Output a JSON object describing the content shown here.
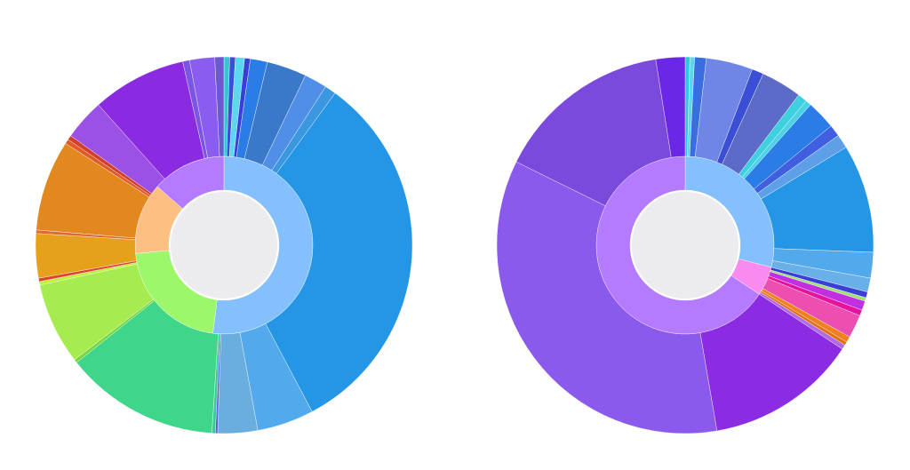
{
  "chart_data": [
    {
      "type": "sunburst",
      "rings": [
        {
          "values": [
            52,
            21.5,
            13,
            13.5
          ],
          "colors": [
            "#84c0fd",
            "#9cf76a",
            "#fdbf82",
            "#b57bff"
          ]
        },
        {
          "values": [
            0.5,
            0.5,
            0.8,
            0.5,
            1.5,
            3.5,
            2,
            1,
            33,
            5,
            3.5,
            0.2,
            0.3,
            13.6,
            0.3,
            7.2,
            0.3,
            0.3,
            3.9,
            0.3,
            8,
            0.4,
            0.4,
            3.6,
            8.3,
            0.6,
            2.2,
            0.8
          ],
          "colors": [
            "#2fc9d6",
            "#3a4ed6",
            "#5bd8f0",
            "#3a3ed8",
            "#2a7de6",
            "#3a78c9",
            "#4f8fe8",
            "#3b98e0",
            "#2596e6",
            "#52a9ec",
            "#6aaee0",
            "#5b5bd6",
            "#3dc9a0",
            "#3fd68a",
            "#7ad640",
            "#a6ec50",
            "#c0f03a",
            "#e0432a",
            "#e5a11c",
            "#e06a2a",
            "#e3881e",
            "#e05a2a",
            "#d0402a",
            "#9b51e6",
            "#8a2be2",
            "#7a55e6",
            "#8b5cf0",
            "#6a5acd"
          ]
        }
      ]
    },
    {
      "type": "sunburst",
      "rings": [
        {
          "values": [
            29,
            5.3,
            65.7
          ],
          "colors": [
            "#84c0fd",
            "#f98bf0",
            "#b57bff"
          ]
        },
        {
          "values": [
            0.4,
            0.4,
            1,
            4,
            1,
            3.5,
            0.8,
            0.5,
            2.5,
            1,
            1.2,
            9.3,
            2.2,
            1.2,
            0.5,
            0.3,
            0.8,
            0.5,
            2,
            0.5,
            0.3,
            0.4,
            13,
            35,
            15.2,
            2.5
          ],
          "colors": [
            "#2fc9d6",
            "#5bd8f0",
            "#3a6ee0",
            "#6f86e6",
            "#3a4ed6",
            "#5c6bc8",
            "#3fd0e0",
            "#4cd3e6",
            "#2a7de6",
            "#3f5ee0",
            "#5ea0e8",
            "#2596e6",
            "#52a9ec",
            "#6ab0e8",
            "#3a3ed8",
            "#a0e070",
            "#c030e0",
            "#e6139f",
            "#ec4fb0",
            "#f08020",
            "#e07010",
            "#b06be0",
            "#8b2be2",
            "#8b5aec",
            "#7b4adc",
            "#6a28e6"
          ]
        }
      ]
    }
  ]
}
